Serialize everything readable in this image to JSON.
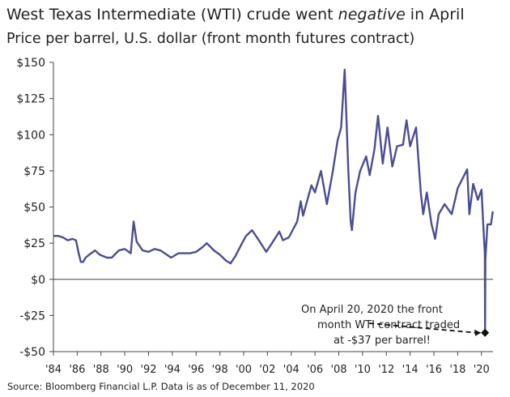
{
  "title_pre": "West Texas Intermediate (WTI) crude went ",
  "title_em": "negative",
  "title_post": " in April",
  "subtitle": "Price per barrel, U.S. dollar (front month futures contract)",
  "source": "Source: Bloomberg Financial L.P. Data is as of December 11, 2020",
  "annotation": [
    "On April 20, 2020 the front",
    "month WTI contract traded",
    "at -$37 per barrel!"
  ],
  "colors": {
    "series": "#4b4d91",
    "marker": "#111111",
    "axis": "#444444"
  },
  "chart_data": {
    "type": "line",
    "title": "West Texas Intermediate (WTI) crude went negative in April",
    "ylabel": "Price per barrel, U.S. dollar (front month futures contract)",
    "xlabel": "",
    "xlim": [
      1984,
      2021
    ],
    "ylim": [
      -50,
      150
    ],
    "grid": false,
    "y_ticks": [
      150,
      125,
      100,
      75,
      50,
      25,
      0,
      -25,
      -50
    ],
    "y_tick_labels": [
      "$150",
      "$125",
      "$100",
      "$75",
      "$50",
      "$25",
      "$0",
      "-$25",
      "-$50"
    ],
    "x_ticks": [
      1984,
      1986,
      1988,
      1990,
      1992,
      1994,
      1996,
      1998,
      2000,
      2002,
      2004,
      2006,
      2008,
      2010,
      2012,
      2014,
      2016,
      2018,
      2020
    ],
    "x_tick_labels": [
      "'84",
      "'86",
      "'88",
      "'90",
      "'92",
      "'94",
      "'96",
      "'98",
      "'00",
      "'02",
      "'04",
      "'06",
      "'08",
      "'10",
      "'12",
      "'14",
      "'16",
      "'18",
      "'20"
    ],
    "series": [
      {
        "values": [
          [
            1984.0,
            30
          ],
          [
            1984.4,
            30
          ],
          [
            1984.8,
            29
          ],
          [
            1985.2,
            27
          ],
          [
            1985.6,
            28
          ],
          [
            1985.9,
            27
          ],
          [
            1986.1,
            19
          ],
          [
            1986.3,
            12
          ],
          [
            1986.5,
            12
          ],
          [
            1986.7,
            15
          ],
          [
            1987.0,
            17
          ],
          [
            1987.5,
            20
          ],
          [
            1987.9,
            17
          ],
          [
            1988.5,
            15
          ],
          [
            1988.9,
            15
          ],
          [
            1989.5,
            20
          ],
          [
            1990.0,
            21
          ],
          [
            1990.5,
            18
          ],
          [
            1990.75,
            40
          ],
          [
            1991.0,
            26
          ],
          [
            1991.5,
            20
          ],
          [
            1992.0,
            19
          ],
          [
            1992.5,
            21
          ],
          [
            1993.0,
            20
          ],
          [
            1993.9,
            15
          ],
          [
            1994.5,
            18
          ],
          [
            1995.0,
            18
          ],
          [
            1995.5,
            18
          ],
          [
            1996.0,
            19
          ],
          [
            1996.5,
            22
          ],
          [
            1996.9,
            25
          ],
          [
            1997.5,
            20
          ],
          [
            1998.0,
            17
          ],
          [
            1998.5,
            13
          ],
          [
            1998.9,
            11
          ],
          [
            1999.3,
            16
          ],
          [
            1999.8,
            24
          ],
          [
            2000.2,
            30
          ],
          [
            2000.7,
            34
          ],
          [
            2001.2,
            28
          ],
          [
            2001.9,
            19
          ],
          [
            2002.3,
            24
          ],
          [
            2003.0,
            33
          ],
          [
            2003.3,
            27
          ],
          [
            2003.8,
            29
          ],
          [
            2004.5,
            40
          ],
          [
            2004.8,
            54
          ],
          [
            2005.0,
            44
          ],
          [
            2005.7,
            65
          ],
          [
            2006.0,
            60
          ],
          [
            2006.5,
            75
          ],
          [
            2007.0,
            52
          ],
          [
            2007.5,
            75
          ],
          [
            2007.9,
            96
          ],
          [
            2008.2,
            105
          ],
          [
            2008.5,
            145
          ],
          [
            2008.8,
            75
          ],
          [
            2009.0,
            40
          ],
          [
            2009.1,
            34
          ],
          [
            2009.4,
            60
          ],
          [
            2009.8,
            75
          ],
          [
            2010.3,
            85
          ],
          [
            2010.6,
            72
          ],
          [
            2011.0,
            90
          ],
          [
            2011.3,
            113
          ],
          [
            2011.7,
            80
          ],
          [
            2012.1,
            105
          ],
          [
            2012.5,
            78
          ],
          [
            2012.9,
            92
          ],
          [
            2013.4,
            93
          ],
          [
            2013.7,
            110
          ],
          [
            2014.0,
            92
          ],
          [
            2014.5,
            105
          ],
          [
            2014.9,
            60
          ],
          [
            2015.1,
            45
          ],
          [
            2015.4,
            60
          ],
          [
            2015.8,
            38
          ],
          [
            2016.1,
            28
          ],
          [
            2016.4,
            45
          ],
          [
            2016.9,
            52
          ],
          [
            2017.5,
            45
          ],
          [
            2018.0,
            63
          ],
          [
            2018.8,
            76
          ],
          [
            2018.98,
            45
          ],
          [
            2019.3,
            66
          ],
          [
            2019.7,
            55
          ],
          [
            2020.0,
            62
          ],
          [
            2020.2,
            30
          ],
          [
            2020.28,
            18
          ],
          [
            2020.3,
            -37
          ],
          [
            2020.33,
            14
          ],
          [
            2020.5,
            38
          ],
          [
            2020.8,
            38
          ],
          [
            2020.95,
            47
          ]
        ]
      }
    ],
    "marker": {
      "x": 2020.3,
      "y": -37
    }
  }
}
